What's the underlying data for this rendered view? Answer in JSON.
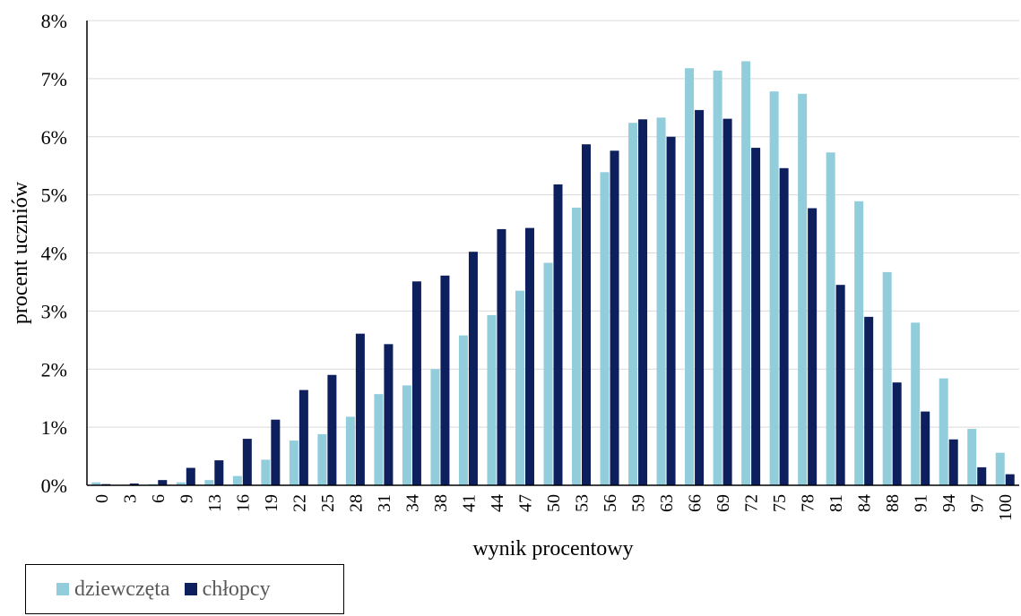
{
  "chart_data": {
    "type": "bar",
    "title": "",
    "xlabel": "wynik procentowy",
    "ylabel": "procent uczniów",
    "ylim": [
      0,
      8
    ],
    "yticks": [
      "0%",
      "1%",
      "2%",
      "3%",
      "4%",
      "5%",
      "6%",
      "7%",
      "8%"
    ],
    "grid": true,
    "legend_position": "bottom-left",
    "categories": [
      "0",
      "3",
      "6",
      "9",
      "13",
      "16",
      "19",
      "22",
      "25",
      "28",
      "31",
      "34",
      "38",
      "41",
      "44",
      "47",
      "50",
      "53",
      "56",
      "59",
      "63",
      "66",
      "69",
      "72",
      "75",
      "78",
      "81",
      "84",
      "88",
      "91",
      "94",
      "97",
      "100"
    ],
    "series": [
      {
        "name": "dziewczęta",
        "color": "#92cddc",
        "values": [
          0.05,
          0.01,
          0.02,
          0.05,
          0.09,
          0.16,
          0.44,
          0.77,
          0.88,
          1.18,
          1.57,
          1.72,
          2.0,
          2.58,
          2.93,
          3.35,
          3.83,
          4.78,
          5.39,
          6.24,
          6.33,
          7.18,
          7.14,
          7.3,
          6.78,
          6.74,
          5.73,
          4.89,
          3.67,
          2.8,
          1.84,
          0.97,
          0.56
        ]
      },
      {
        "name": "chłopcy",
        "color": "#0d1f5c",
        "values": [
          0.02,
          0.03,
          0.09,
          0.3,
          0.43,
          0.8,
          1.13,
          1.64,
          1.9,
          2.61,
          2.43,
          3.51,
          3.61,
          4.02,
          4.41,
          4.43,
          5.18,
          5.87,
          5.76,
          6.3,
          6.0,
          6.46,
          6.31,
          5.81,
          5.46,
          4.77,
          3.45,
          2.9,
          1.77,
          1.27,
          0.79,
          0.31,
          0.19
        ]
      }
    ]
  }
}
